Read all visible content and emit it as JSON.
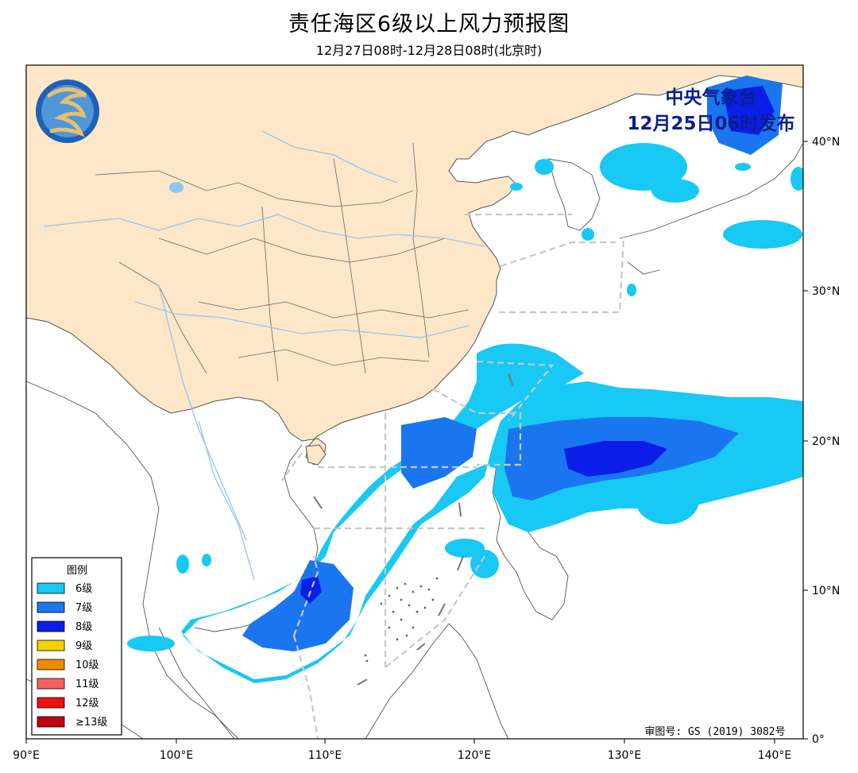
{
  "header": {
    "title": "责任海区6级以上风力预报图",
    "subtitle": "12月27日08时-12月28日08时(北京时)"
  },
  "issuer": {
    "line1": "中央气象台",
    "line2": "12月25日06时发布"
  },
  "review_number": "审图号: GS (2019) 3082号",
  "axes": {
    "x_ticks": [
      "90°E",
      "100°E",
      "110°E",
      "120°E",
      "130°E",
      "140°E"
    ],
    "y_ticks": [
      "40°N",
      "30°N",
      "20°N",
      "10°N",
      "0°"
    ]
  },
  "legend": {
    "title": "图例",
    "items": [
      {
        "label": "6级",
        "color": "#18c8f5"
      },
      {
        "label": "7级",
        "color": "#1a76f0"
      },
      {
        "label": "8级",
        "color": "#0a1ee8"
      },
      {
        "label": "9级",
        "color": "#f5d200"
      },
      {
        "label": "10级",
        "color": "#f08a00"
      },
      {
        "label": "11级",
        "color": "#f86060"
      },
      {
        "label": "12级",
        "color": "#f01010"
      },
      {
        "label": "≥13级",
        "color": "#c00010"
      }
    ]
  },
  "colors": {
    "land_china": "#fde7c8",
    "sea": "#ffffff",
    "boundary": "#555555",
    "river": "#8ec7f2",
    "zone_line": "#c8c8c8"
  },
  "logo": "cma-logo"
}
